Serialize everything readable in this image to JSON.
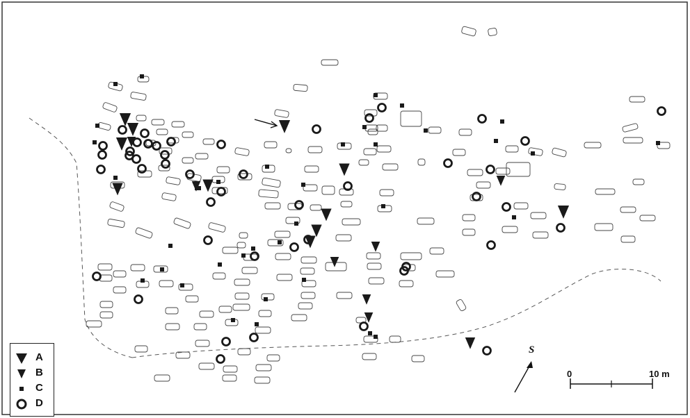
{
  "legend": {
    "items": [
      {
        "key": "A",
        "label": "A",
        "symbol": "triangle-large"
      },
      {
        "key": "B",
        "label": "B",
        "symbol": "triangle-small"
      },
      {
        "key": "C",
        "label": "C",
        "symbol": "square-small"
      },
      {
        "key": "D",
        "label": "D",
        "symbol": "circle-ring"
      }
    ]
  },
  "scale_bar": {
    "start_label": "0",
    "end_label": "10 m",
    "length_m": 10
  },
  "north_arrow": {
    "label": "S"
  },
  "colors": {
    "ink": "#1a1a1a",
    "outline": "#444444",
    "background": "#ffffff"
  }
}
